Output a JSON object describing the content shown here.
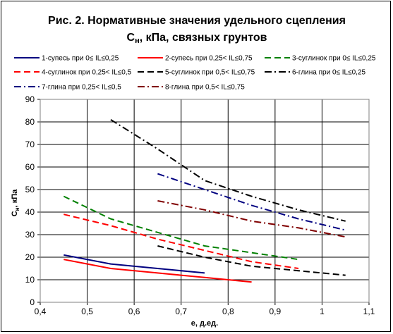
{
  "chart_data": {
    "type": "line",
    "title_line1": "Рис. 2. Нормативные значения удельного сцепления",
    "title_line2_main": "С",
    "title_line2_sub": "н",
    "title_line2_rest": ", кПа, связных грунтов",
    "xlabel": "е, д.ед.",
    "ylabel_main": "С",
    "ylabel_sub": "н",
    "ylabel_rest": ", кПа",
    "xlim": [
      0.4,
      1.1
    ],
    "ylim": [
      0,
      90
    ],
    "x_ticks": [
      "0,4",
      "0,5",
      "0,6",
      "0,7",
      "0,8",
      "0,9",
      "1",
      "1,1"
    ],
    "y_ticks": [
      "0",
      "10",
      "20",
      "30",
      "40",
      "50",
      "60",
      "70",
      "80",
      "90"
    ],
    "grid": true,
    "legend_position": "top",
    "series": [
      {
        "name": "1-супесь при 0≤ IL≤0,25",
        "color": "#000080",
        "dash": "solid",
        "x": [
          0.45,
          0.55,
          0.65,
          0.75
        ],
        "y": [
          21,
          17,
          15,
          13
        ]
      },
      {
        "name": "2-супесь при 0,25< IL≤0,75",
        "color": "#ff0000",
        "dash": "solid",
        "x": [
          0.45,
          0.55,
          0.65,
          0.75,
          0.85
        ],
        "y": [
          19,
          15,
          13,
          11,
          9
        ]
      },
      {
        "name": "3-суглинок при 0≤ IL≤0,25",
        "color": "#008000",
        "dash": "dash",
        "x": [
          0.45,
          0.55,
          0.65,
          0.75,
          0.85,
          0.95
        ],
        "y": [
          47,
          37,
          31,
          25,
          22,
          19
        ]
      },
      {
        "name": "4-суглинок при 0,25< IL≤0,5",
        "color": "#ff0000",
        "dash": "dash",
        "x": [
          0.45,
          0.55,
          0.65,
          0.75,
          0.85,
          0.95
        ],
        "y": [
          39,
          34,
          28,
          23,
          18,
          15
        ]
      },
      {
        "name": "5-суглинок при 0,5< IL≤0,75",
        "color": "#000000",
        "dash": "dash",
        "x": [
          0.65,
          0.75,
          0.85,
          0.95,
          1.05
        ],
        "y": [
          25,
          20,
          16,
          14,
          12
        ]
      },
      {
        "name": "6-глина при 0≤ IL≤0,25",
        "color": "#000000",
        "dash": "dashdot",
        "x": [
          0.55,
          0.65,
          0.75,
          0.85,
          0.95,
          1.05
        ],
        "y": [
          81,
          68,
          54,
          47,
          41,
          36
        ]
      },
      {
        "name": "7-глина при 0,25< IL≤0,5",
        "color": "#000080",
        "dash": "dashdot",
        "x": [
          0.65,
          0.75,
          0.85,
          0.95,
          1.05
        ],
        "y": [
          57,
          50,
          43,
          37,
          32
        ]
      },
      {
        "name": "8-глина при 0,5< IL≤0,75",
        "color": "#800000",
        "dash": "dashdot",
        "x": [
          0.65,
          0.75,
          0.85,
          0.95,
          1.05
        ],
        "y": [
          45,
          41,
          36,
          33,
          29
        ]
      }
    ]
  }
}
